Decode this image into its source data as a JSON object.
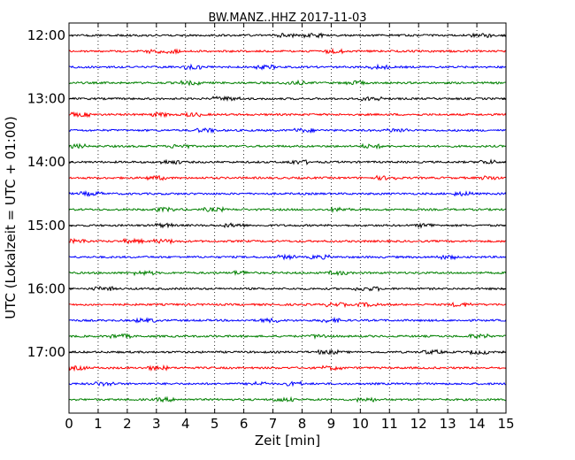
{
  "chart_data": {
    "type": "line",
    "title": "BW.MANZ..HHZ 2017-11-03",
    "xlabel": "Zeit  [min]",
    "ylabel": "UTC (Lokalzeit = UTC + 01:00)",
    "xlim": [
      0,
      15
    ],
    "x_ticks": [
      0,
      1,
      2,
      3,
      4,
      5,
      6,
      7,
      8,
      9,
      10,
      11,
      12,
      13,
      14,
      15
    ],
    "y_tick_labels": [
      "12:00",
      "13:00",
      "14:00",
      "15:00",
      "16:00",
      "17:00"
    ],
    "grid": "vertical-dotted",
    "trace_start_times": [
      "12:00",
      "12:15",
      "12:30",
      "12:45",
      "13:00",
      "13:15",
      "13:30",
      "13:45",
      "14:00",
      "14:15",
      "14:30",
      "14:45",
      "15:00",
      "15:15",
      "15:30",
      "15:45",
      "16:00",
      "16:15",
      "16:30",
      "16:45",
      "17:00",
      "17:15",
      "17:30",
      "17:45"
    ],
    "trace_colors": [
      "#000000",
      "#ff0000",
      "#0000ff",
      "#008000"
    ]
  }
}
